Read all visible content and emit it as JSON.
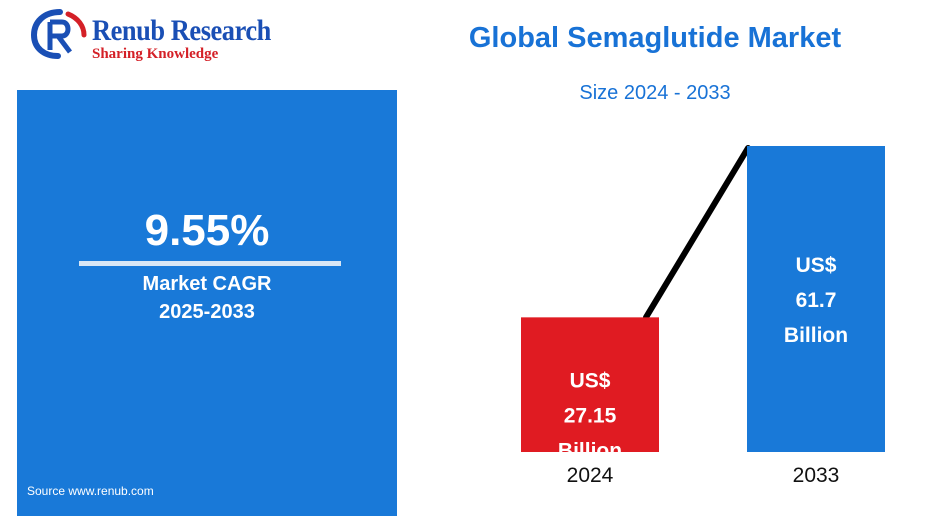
{
  "brand": {
    "name": "Renub Research",
    "tagline": "Sharing Knowledge"
  },
  "title": "Global Semaglutide Market",
  "subtitle": "Size 2024 - 2033",
  "cagr_panel": {
    "value": "9.55%",
    "label_line1": "Market CAGR",
    "label_line2": "2025-2033",
    "source": "Source  www.renub.com"
  },
  "colors": {
    "brand_blue": "#1a4fb5",
    "accent_red": "#d42027",
    "panel_blue": "#1979d8",
    "bar_2024": "#e01b22",
    "bar_2033": "#1979d8",
    "connector": "#000000"
  },
  "chart_data": {
    "type": "bar",
    "title": "Global Semaglutide Market",
    "subtitle": "Size 2024 - 2033",
    "categories": [
      "2024",
      "2033"
    ],
    "values": [
      27.15,
      61.7
    ],
    "unit": "US$ Billion",
    "data_labels": [
      [
        "US$",
        "27.15",
        "Billion"
      ],
      [
        "US$",
        "61.7",
        "Billion"
      ]
    ],
    "connector_line": true,
    "grid": false,
    "legend": "none"
  }
}
